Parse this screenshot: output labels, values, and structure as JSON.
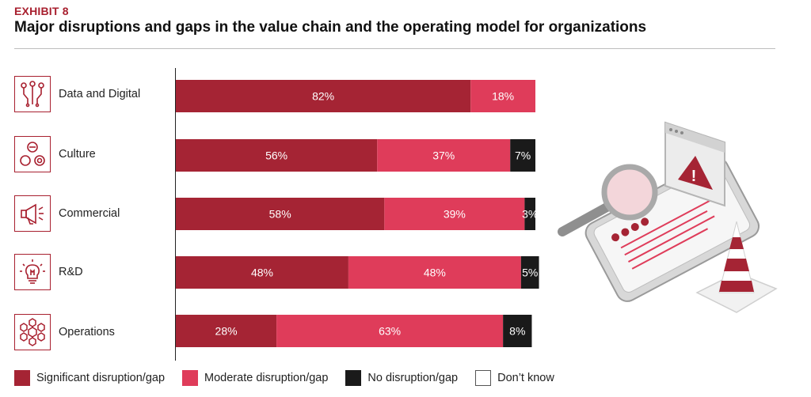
{
  "header": {
    "exhibit": "EXHIBIT 8",
    "title": "Major disruptions and gaps in the value chain and the operating model for organizations"
  },
  "colors": {
    "significant": "#a52434",
    "moderate": "#df3c5a",
    "none": "#1a1a1a",
    "dont_know": "#ffffff",
    "accent": "#a8202f"
  },
  "rows": [
    {
      "label": "Data and Digital",
      "icon": "circuit-icon"
    },
    {
      "label": "Culture",
      "icon": "people-circles-icon"
    },
    {
      "label": "Commercial",
      "icon": "megaphone-icon"
    },
    {
      "label": "R&D",
      "icon": "lightbulb-icon"
    },
    {
      "label": "Operations",
      "icon": "hexagon-network-icon"
    }
  ],
  "legend": [
    {
      "label": "Significant disruption/gap",
      "color": "#a52434"
    },
    {
      "label": "Moderate disruption/gap",
      "color": "#df3c5a"
    },
    {
      "label": "No disruption/gap",
      "color": "#1a1a1a"
    },
    {
      "label": "Don’t know",
      "color": "#ffffff"
    }
  ],
  "chart_data": {
    "type": "bar",
    "orientation": "horizontal",
    "stacked": true,
    "categories": [
      "Data and Digital",
      "Culture",
      "Commercial",
      "R&D",
      "Operations"
    ],
    "series": [
      {
        "name": "Significant disruption/gap",
        "values": [
          82,
          56,
          58,
          48,
          28
        ],
        "labels": [
          "82%",
          "56%",
          "58%",
          "48%",
          "28%"
        ]
      },
      {
        "name": "Moderate disruption/gap",
        "values": [
          18,
          37,
          39,
          48,
          63
        ],
        "labels": [
          "18%",
          "37%",
          "39%",
          "48%",
          "63%"
        ]
      },
      {
        "name": "No disruption/gap",
        "values": [
          0,
          7,
          3,
          5,
          8
        ],
        "labels": [
          "",
          "7%",
          "3%",
          "5%",
          "8%"
        ]
      },
      {
        "name": "Don’t know",
        "values": [
          0,
          0,
          0,
          0,
          0
        ],
        "labels": [
          "",
          "",
          "",
          "",
          ""
        ]
      }
    ],
    "xlim": [
      0,
      100
    ],
    "unit": "%",
    "title": "Major disruptions and gaps in the value chain and the operating model for organizations"
  }
}
